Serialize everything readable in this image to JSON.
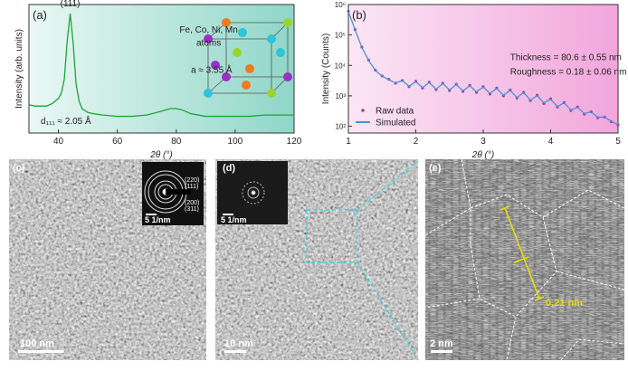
{
  "chart_data": [
    {
      "type": "line",
      "panel_label": "(a)",
      "ylabel": "Intensity (arb. units)",
      "xlabel": "2θ (°)",
      "annotations": [
        "(111)",
        "Fe, Co, Ni, Mn",
        "atoms",
        "a ≈ 3.55 Å",
        "d₁₁₁ ≈ 2.05 Å"
      ],
      "x": [
        30,
        32,
        34,
        36,
        38,
        40,
        41,
        42,
        43,
        44,
        45,
        46,
        47,
        48,
        50,
        52,
        55,
        60,
        65,
        70,
        75,
        78,
        80,
        82,
        85,
        90,
        95,
        100,
        105,
        110,
        115,
        120
      ],
      "series": [
        {
          "color": "#1fa33a",
          "values": [
            0.22,
            0.21,
            0.21,
            0.21,
            0.23,
            0.27,
            0.31,
            0.42,
            0.72,
            0.93,
            0.7,
            0.38,
            0.25,
            0.19,
            0.16,
            0.15,
            0.14,
            0.13,
            0.13,
            0.14,
            0.17,
            0.19,
            0.19,
            0.18,
            0.15,
            0.13,
            0.13,
            0.13,
            0.13,
            0.14,
            0.14,
            0.14
          ]
        }
      ],
      "xlim": [
        30,
        120
      ],
      "xticks": [
        40,
        60,
        80,
        100,
        120
      ],
      "ylim": [
        0,
        1
      ]
    },
    {
      "type": "line",
      "panel_label": "(b)",
      "ylabel": "Intensity (Counts)",
      "xlabel": "2θ (°)",
      "annotations": [
        "Thickness = 80.6 ± 0.55 nm",
        "Roughness = 0.18 ± 0.06 nm"
      ],
      "ylog": true,
      "legend": "lower left",
      "x": [
        1.0,
        1.1,
        1.2,
        1.3,
        1.4,
        1.5,
        1.6,
        1.7,
        1.8,
        1.9,
        2.0,
        2.1,
        2.2,
        2.3,
        2.4,
        2.5,
        2.6,
        2.7,
        2.8,
        2.9,
        3.0,
        3.1,
        3.2,
        3.3,
        3.4,
        3.5,
        3.6,
        3.7,
        3.8,
        3.9,
        4.0,
        4.1,
        4.2,
        4.3,
        4.4,
        4.5,
        4.6,
        4.7,
        4.8,
        4.9,
        5.0
      ],
      "series": [
        {
          "name": "Raw data",
          "marker": "dot",
          "color": "#a0428f",
          "values": [
            600000,
            150000,
            40000,
            15000,
            7000,
            4500,
            3500,
            2600,
            3200,
            2000,
            3000,
            1800,
            2800,
            1600,
            2600,
            1500,
            2400,
            1400,
            2200,
            1300,
            2000,
            1150,
            1800,
            1000,
            1550,
            850,
            1300,
            700,
            1050,
            560,
            800,
            430,
            600,
            330,
            430,
            250,
            300,
            190,
            200,
            140,
            110
          ]
        },
        {
          "name": "Simulated",
          "marker": "line",
          "color": "#4a8fd6",
          "values": [
            580000,
            145000,
            39000,
            14500,
            6900,
            4400,
            3400,
            2650,
            3150,
            2050,
            2950,
            1850,
            2750,
            1650,
            2550,
            1550,
            2350,
            1450,
            2150,
            1350,
            1950,
            1200,
            1750,
            1050,
            1500,
            880,
            1280,
            720,
            1020,
            580,
            780,
            440,
            590,
            340,
            420,
            260,
            300,
            195,
            205,
            145,
            112
          ]
        }
      ],
      "xlim": [
        1,
        5
      ],
      "xticks": [
        1,
        2,
        3,
        4,
        5
      ],
      "ylim": [
        60,
        1000000
      ],
      "yticks": [
        {
          "value": 100,
          "label": "10²"
        },
        {
          "value": 1000,
          "label": "10³"
        },
        {
          "value": 10000,
          "label": "10⁴"
        },
        {
          "value": 100000,
          "label": "10⁵"
        },
        {
          "value": 1000000,
          "label": "10⁶"
        }
      ]
    }
  ],
  "panels": [
    {
      "label": "(c)",
      "scale_bar": "100 nm",
      "inset": {
        "scale_bar": "5 1/nm",
        "rings": [
          "(220)",
          "(111)",
          "(200)",
          "(311)"
        ]
      }
    },
    {
      "label": "(d)",
      "scale_bar": "10 nm",
      "inset": {
        "scale_bar": "5 1/nm"
      }
    },
    {
      "label": "(e)",
      "scale_bar": "2 nm",
      "annotation": "0.21 nm"
    }
  ]
}
